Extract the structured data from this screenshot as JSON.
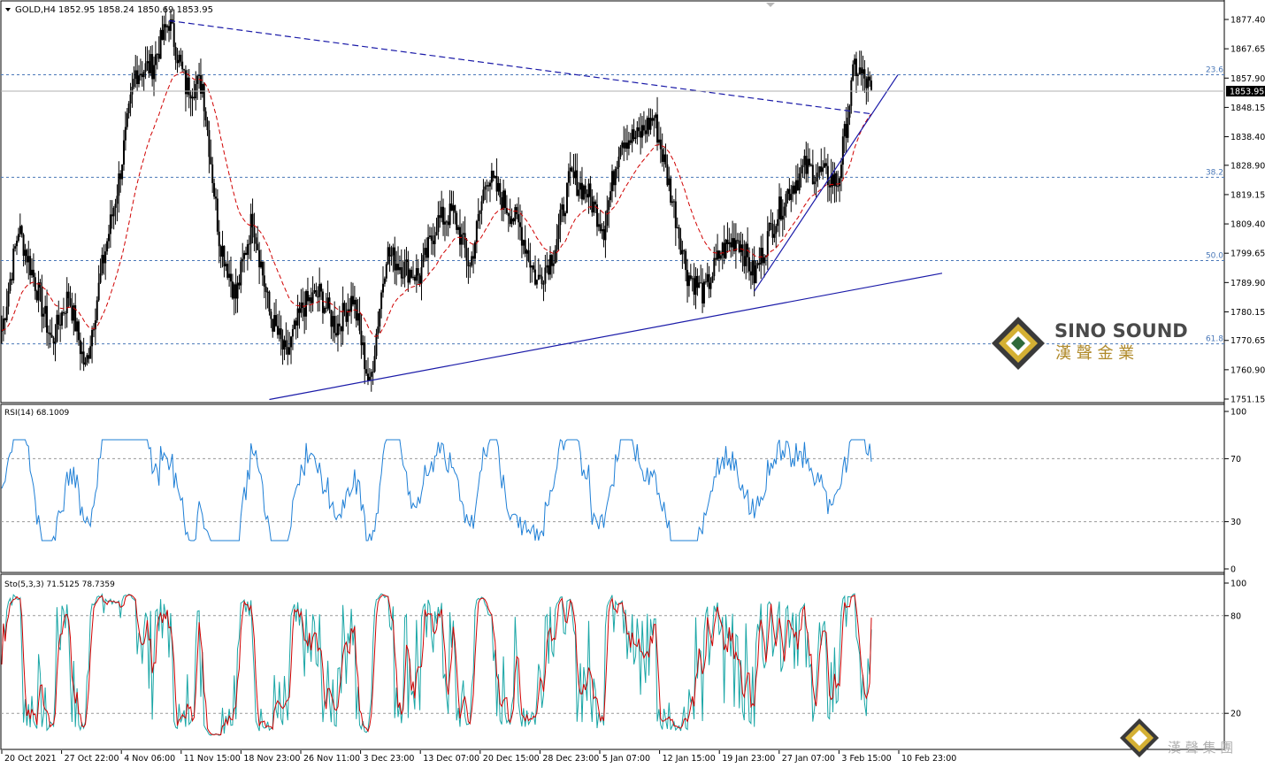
{
  "header": {
    "symbol": "GOLD,H4",
    "ohlc": "1852.95 1858.24 1850.69 1853.95"
  },
  "price_axis": {
    "labels": [
      "1877.40",
      "1867.65",
      "1857.90",
      "1848.15",
      "1838.40",
      "1828.90",
      "1819.15",
      "1809.40",
      "1799.65",
      "1789.90",
      "1780.15",
      "1770.65",
      "1760.90",
      "1751.15"
    ],
    "current_price": "1853.95"
  },
  "fib_levels": [
    {
      "label": "23.6",
      "price": 1859.0
    },
    {
      "label": "38.2",
      "price": 1824.9
    },
    {
      "label": "50.0",
      "price": 1797.2
    },
    {
      "label": "61.8",
      "price": 1769.5
    }
  ],
  "rsi": {
    "label": "RSI(14) 68.1009",
    "axis": [
      "100",
      "70",
      "30",
      "0"
    ]
  },
  "stoch": {
    "label": "Sto(5,3,3) 71.5125 78.7359",
    "axis": [
      "100",
      "80",
      "20"
    ]
  },
  "time_axis": [
    "20 Oct 2021",
    "27 Oct 22:00",
    "4 Nov 06:00",
    "11 Nov 15:00",
    "18 Nov 23:00",
    "26 Nov 11:00",
    "3 Dec 23:00",
    "13 Dec 07:00",
    "20 Dec 15:00",
    "28 Dec 23:00",
    "5 Jan 07:00",
    "12 Jan 15:00",
    "19 Jan 23:00",
    "27 Jan 07:00",
    "3 Feb 15:00",
    "10 Feb 23:00"
  ],
  "logo": {
    "name": "SINO SOUND",
    "chinese": "漢 聲 金 業",
    "watermark": "漢 聲 集 團"
  },
  "colors": {
    "candle": "#000000",
    "ma": "#d00000",
    "trendline": "#1a1aa8",
    "fib": "#4a78b8",
    "rsi": "#1e7fd6",
    "stoch_main": "#1aa6a6",
    "stoch_signal": "#d00000"
  },
  "chart_data": {
    "type": "candlestick",
    "symbol": "GOLD",
    "timeframe": "H4",
    "price_range": [
      1751.15,
      1877.4
    ],
    "anchors": [
      {
        "date": "20 Oct 2021",
        "price": 1774
      },
      {
        "date": "22 Oct",
        "price": 1808
      },
      {
        "date": "27 Oct",
        "price": 1790
      },
      {
        "date": "29 Oct",
        "price": 1770
      },
      {
        "date": "1 Nov",
        "price": 1786
      },
      {
        "date": "3 Nov",
        "price": 1761
      },
      {
        "date": "5 Nov",
        "price": 1795
      },
      {
        "date": "8 Nov",
        "price": 1824
      },
      {
        "date": "10 Nov",
        "price": 1860
      },
      {
        "date": "12 Nov",
        "price": 1862
      },
      {
        "date": "16 Nov",
        "price": 1877
      },
      {
        "date": "17 Nov",
        "price": 1855
      },
      {
        "date": "19 Nov",
        "price": 1856
      },
      {
        "date": "22 Nov",
        "price": 1805
      },
      {
        "date": "24 Nov",
        "price": 1785
      },
      {
        "date": "26 Nov",
        "price": 1812
      },
      {
        "date": "29 Nov",
        "price": 1780
      },
      {
        "date": "1 Dec",
        "price": 1765
      },
      {
        "date": "3 Dec",
        "price": 1782
      },
      {
        "date": "7 Dec",
        "price": 1786
      },
      {
        "date": "9 Dec",
        "price": 1775
      },
      {
        "date": "13 Dec",
        "price": 1785
      },
      {
        "date": "15 Dec",
        "price": 1755
      },
      {
        "date": "17 Dec",
        "price": 1800
      },
      {
        "date": "20 Dec",
        "price": 1795
      },
      {
        "date": "22 Dec",
        "price": 1792
      },
      {
        "date": "24 Dec",
        "price": 1810
      },
      {
        "date": "27 Dec",
        "price": 1813
      },
      {
        "date": "29 Dec",
        "price": 1795
      },
      {
        "date": "31 Dec",
        "price": 1826
      },
      {
        "date": "3 Jan",
        "price": 1817
      },
      {
        "date": "5 Jan",
        "price": 1808
      },
      {
        "date": "7 Jan",
        "price": 1790
      },
      {
        "date": "10 Jan",
        "price": 1800
      },
      {
        "date": "12 Jan",
        "price": 1825
      },
      {
        "date": "14 Jan",
        "price": 1820
      },
      {
        "date": "17 Jan",
        "price": 1808
      },
      {
        "date": "19 Jan",
        "price": 1838
      },
      {
        "date": "21 Jan",
        "price": 1838
      },
      {
        "date": "25 Jan",
        "price": 1845
      },
      {
        "date": "26 Jan",
        "price": 1820
      },
      {
        "date": "27 Jan",
        "price": 1793
      },
      {
        "date": "28 Jan",
        "price": 1786
      },
      {
        "date": "31 Jan",
        "price": 1800
      },
      {
        "date": "2 Feb",
        "price": 1805
      },
      {
        "date": "3 Feb",
        "price": 1792
      },
      {
        "date": "4 Feb",
        "price": 1808
      },
      {
        "date": "7 Feb",
        "price": 1820
      },
      {
        "date": "9 Feb",
        "price": 1828
      },
      {
        "date": "10 Feb",
        "price": 1826
      },
      {
        "date": "11 Feb",
        "price": 1823
      },
      {
        "date": "11 Feb 20:00",
        "price": 1862
      },
      {
        "date": "14 Feb",
        "price": 1854
      }
    ],
    "moving_average": "dashed red",
    "trendlines": [
      {
        "from": {
          "date": "16 Nov",
          "price": 1877
        },
        "to": {
          "date": "14 Feb",
          "price": 1846
        }
      },
      {
        "from": {
          "date": "29 Nov",
          "price": 1751
        },
        "to": {
          "date": "16 Feb",
          "price": 1793
        }
      },
      {
        "from": {
          "date": "3 Feb",
          "price": 1787
        },
        "to": {
          "date": "15 Feb",
          "price": 1859
        }
      }
    ],
    "rsi": {
      "period": 14,
      "current": 68.1009
    },
    "stochastic": {
      "k": 71.5125,
      "d": 78.7359
    }
  }
}
